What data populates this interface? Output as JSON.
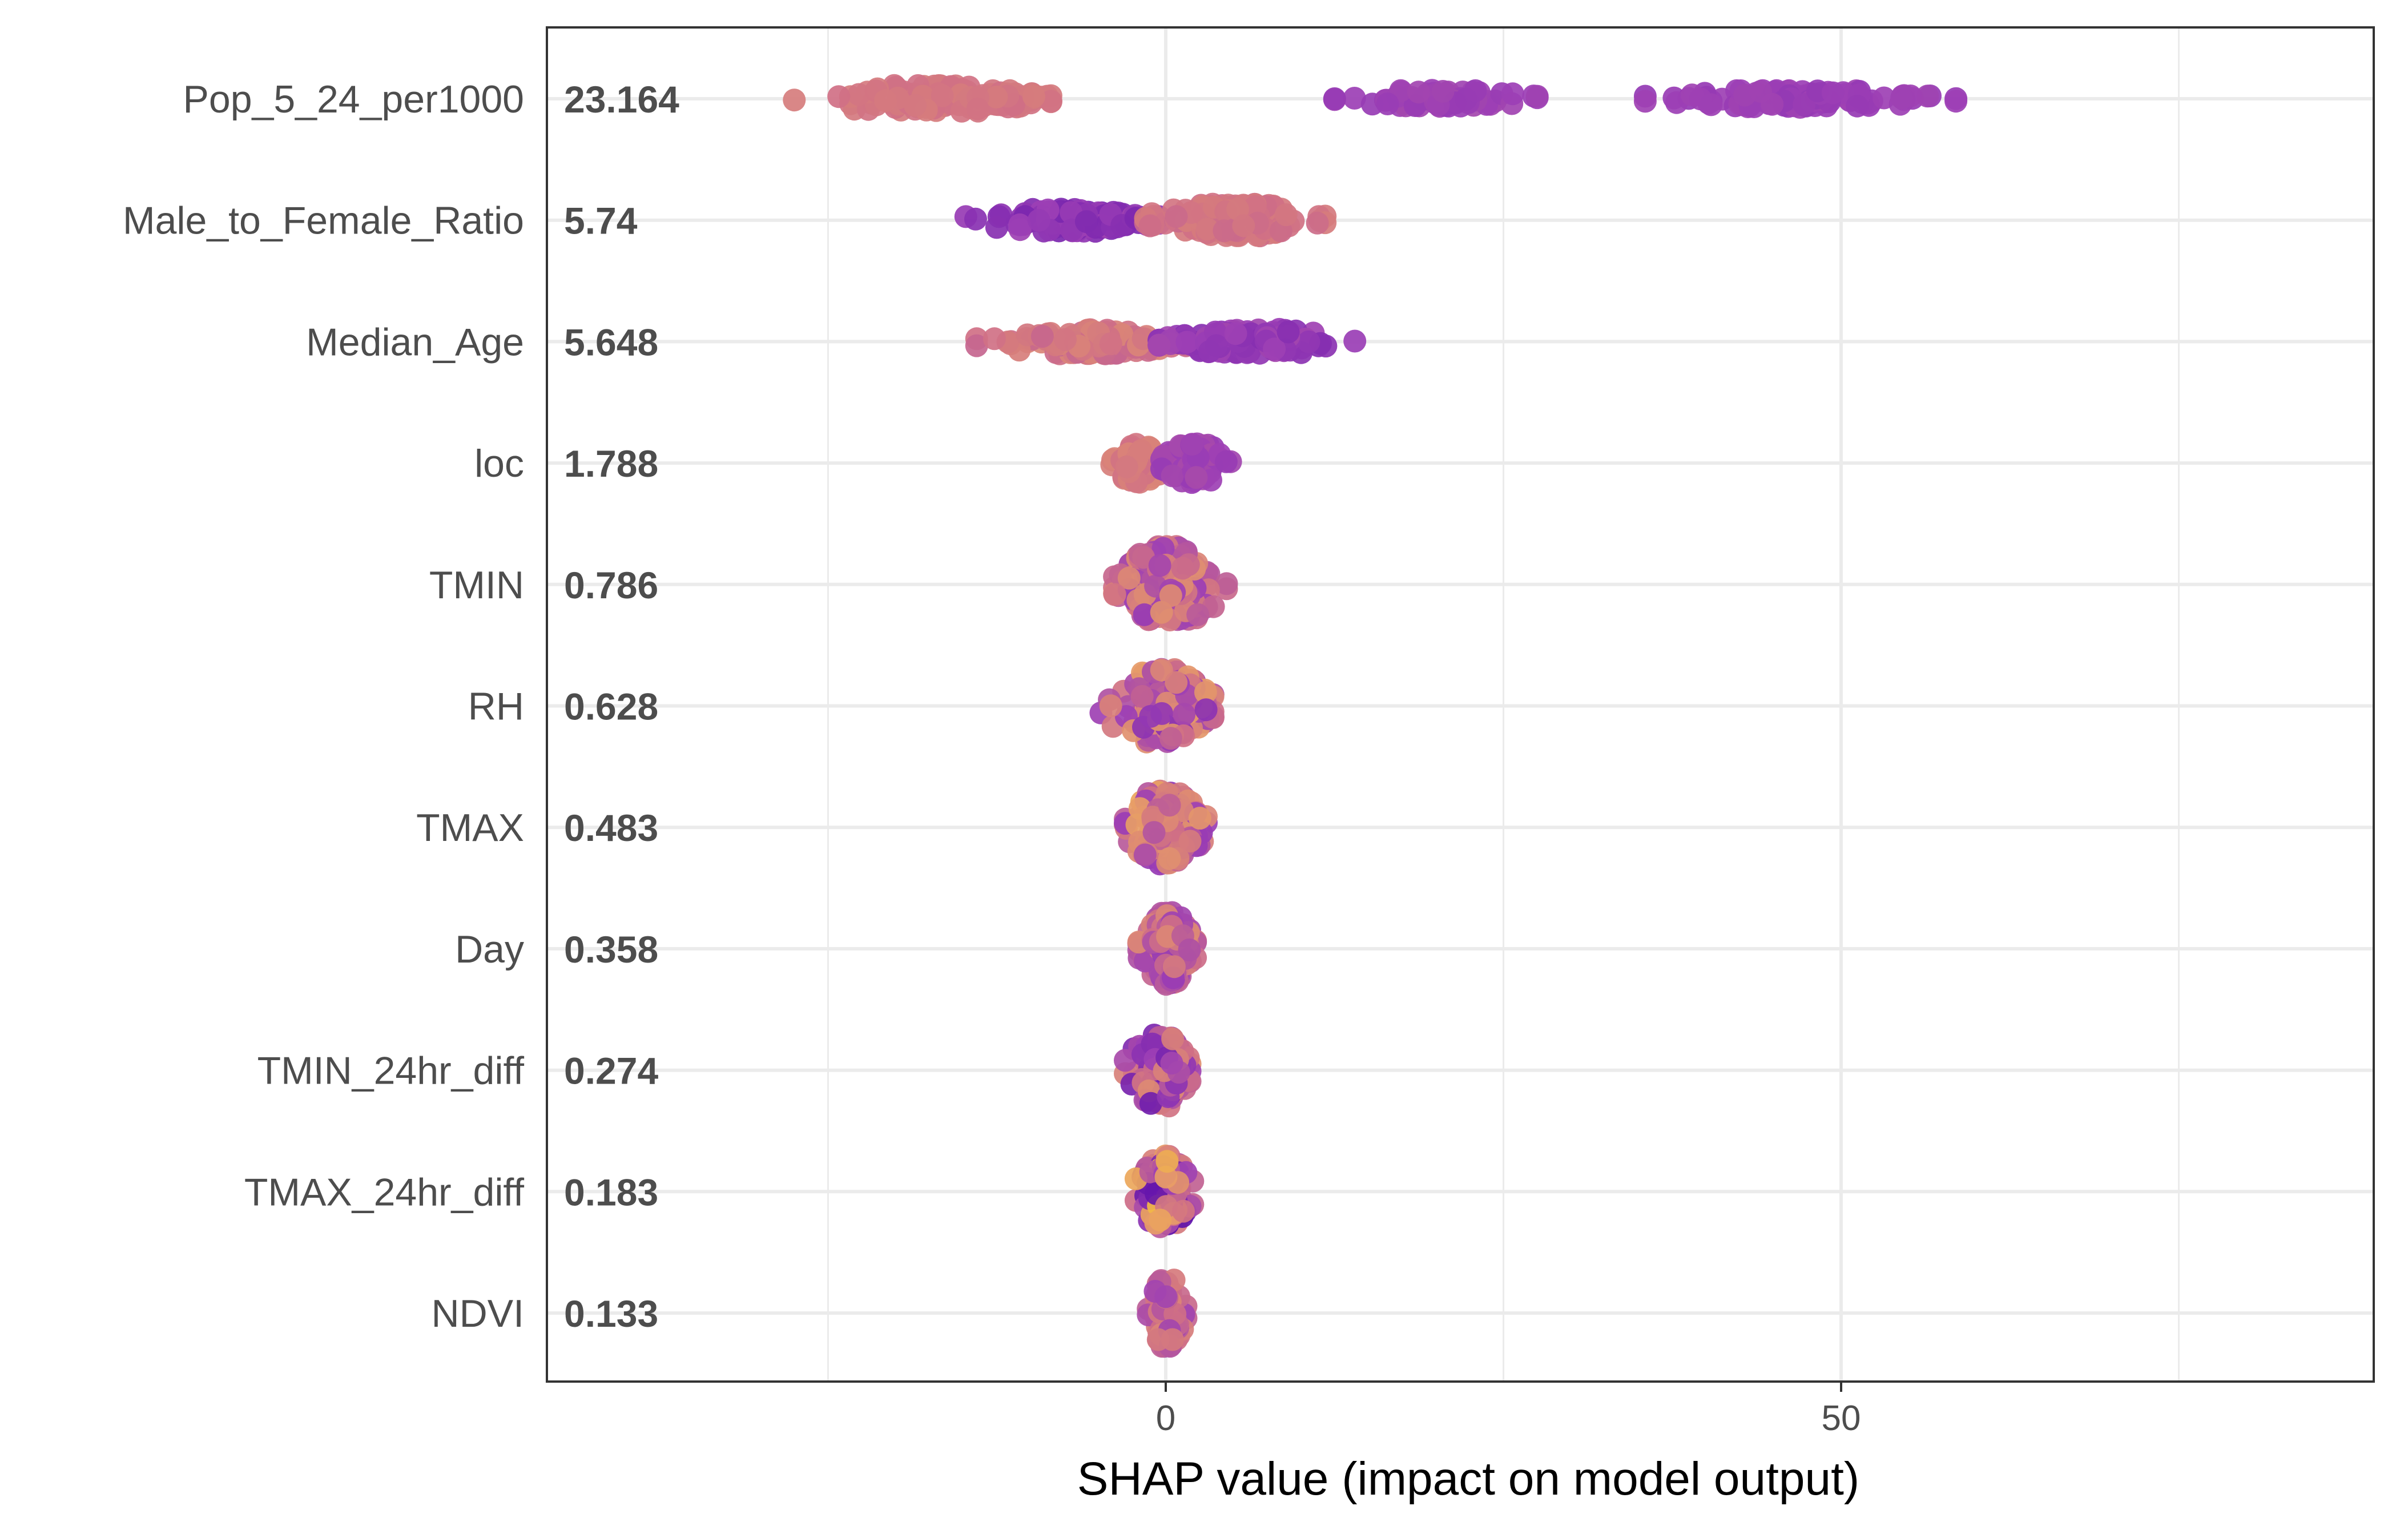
{
  "chart_data": {
    "type": "scatter",
    "subtype": "shap-beeswarm",
    "xlabel": "SHAP value (impact on model output)",
    "xlim": [
      -45.8,
      89.5
    ],
    "x_ticks": [
      0,
      50
    ],
    "grid": true,
    "legend": "none",
    "colors": {
      "low": "#4a02a6",
      "mid_low": "#9c3fb5",
      "mid": "#cf6f86",
      "mid_high": "#e79c67",
      "high": "#fbcf2e",
      "gridline": "#ebebeb",
      "panel_border": "#333333",
      "label_text": "#4d4d4d"
    },
    "features": [
      {
        "name": "Pop_5_24_per1000",
        "importance": "23.164",
        "clusters": [
          {
            "min": -27.5,
            "max": -8.5,
            "center": -15.5,
            "n": 130,
            "color_lo": 0.55,
            "color_hi": 0.62,
            "spread": 0.22
          },
          {
            "min": 12.5,
            "max": 27.5,
            "center": 20.5,
            "n": 70,
            "color_lo": 0.28,
            "color_hi": 0.34,
            "spread": 0.14
          },
          {
            "min": 35.5,
            "max": 58.5,
            "center": 47.0,
            "n": 110,
            "color_lo": 0.27,
            "color_hi": 0.32,
            "spread": 0.14
          }
        ]
      },
      {
        "name": "Male_to_Female_Ratio",
        "importance": "5.74",
        "clusters": [
          {
            "min": -14.8,
            "max": -0.5,
            "center": -6.5,
            "n": 120,
            "color_lo": 0.18,
            "color_hi": 0.32,
            "spread": 0.18
          },
          {
            "min": -1.5,
            "max": 11.8,
            "center": 5.0,
            "n": 140,
            "color_lo": 0.52,
            "color_hi": 0.62,
            "spread": 0.26
          }
        ]
      },
      {
        "name": "Median_Age",
        "importance": "5.648",
        "clusters": [
          {
            "min": -14.0,
            "max": 1.5,
            "center": -5.0,
            "n": 140,
            "color_lo": 0.5,
            "color_hi": 0.66,
            "spread": 0.2
          },
          {
            "min": -0.5,
            "max": 14.0,
            "center": 5.0,
            "n": 130,
            "color_lo": 0.22,
            "color_hi": 0.34,
            "spread": 0.2
          }
        ]
      },
      {
        "name": "loc",
        "importance": "1.788",
        "clusters": [
          {
            "min": -4.0,
            "max": 0.3,
            "center": -2.0,
            "n": 70,
            "color_lo": 0.55,
            "color_hi": 0.66,
            "spread": 0.32
          },
          {
            "min": -0.3,
            "max": 4.8,
            "center": 1.8,
            "n": 80,
            "color_lo": 0.28,
            "color_hi": 0.36,
            "spread": 0.32
          }
        ]
      },
      {
        "name": "TMIN",
        "importance": "0.786",
        "clusters": [
          {
            "min": -3.8,
            "max": 4.5,
            "center": 0.2,
            "n": 160,
            "color_lo": 0.28,
            "color_hi": 0.72,
            "spread": 0.62
          }
        ]
      },
      {
        "name": "RH",
        "importance": "0.628",
        "clusters": [
          {
            "min": -4.8,
            "max": 3.5,
            "center": 0.2,
            "n": 160,
            "color_lo": 0.22,
            "color_hi": 0.78,
            "spread": 0.6
          }
        ]
      },
      {
        "name": "TMAX",
        "importance": "0.483",
        "clusters": [
          {
            "min": -3.0,
            "max": 3.0,
            "center": 0.0,
            "n": 150,
            "color_lo": 0.25,
            "color_hi": 0.82,
            "spread": 0.6
          }
        ]
      },
      {
        "name": "Day",
        "importance": "0.358",
        "clusters": [
          {
            "min": -2.0,
            "max": 2.2,
            "center": 0.0,
            "n": 130,
            "color_lo": 0.28,
            "color_hi": 0.7,
            "spread": 0.6
          }
        ]
      },
      {
        "name": "TMIN_24hr_diff",
        "importance": "0.274",
        "clusters": [
          {
            "min": -3.0,
            "max": 1.8,
            "center": 0.0,
            "n": 120,
            "color_lo": 0.12,
            "color_hi": 0.75,
            "spread": 0.6
          }
        ]
      },
      {
        "name": "TMAX_24hr_diff",
        "importance": "0.183",
        "clusters": [
          {
            "min": -2.2,
            "max": 2.0,
            "center": 0.0,
            "n": 110,
            "color_lo": 0.05,
            "color_hi": 0.95,
            "spread": 0.6
          }
        ]
      },
      {
        "name": "NDVI",
        "importance": "0.133",
        "clusters": [
          {
            "min": -1.3,
            "max": 1.5,
            "center": 0.0,
            "n": 90,
            "color_lo": 0.3,
            "color_hi": 0.68,
            "spread": 0.55
          }
        ]
      }
    ]
  }
}
